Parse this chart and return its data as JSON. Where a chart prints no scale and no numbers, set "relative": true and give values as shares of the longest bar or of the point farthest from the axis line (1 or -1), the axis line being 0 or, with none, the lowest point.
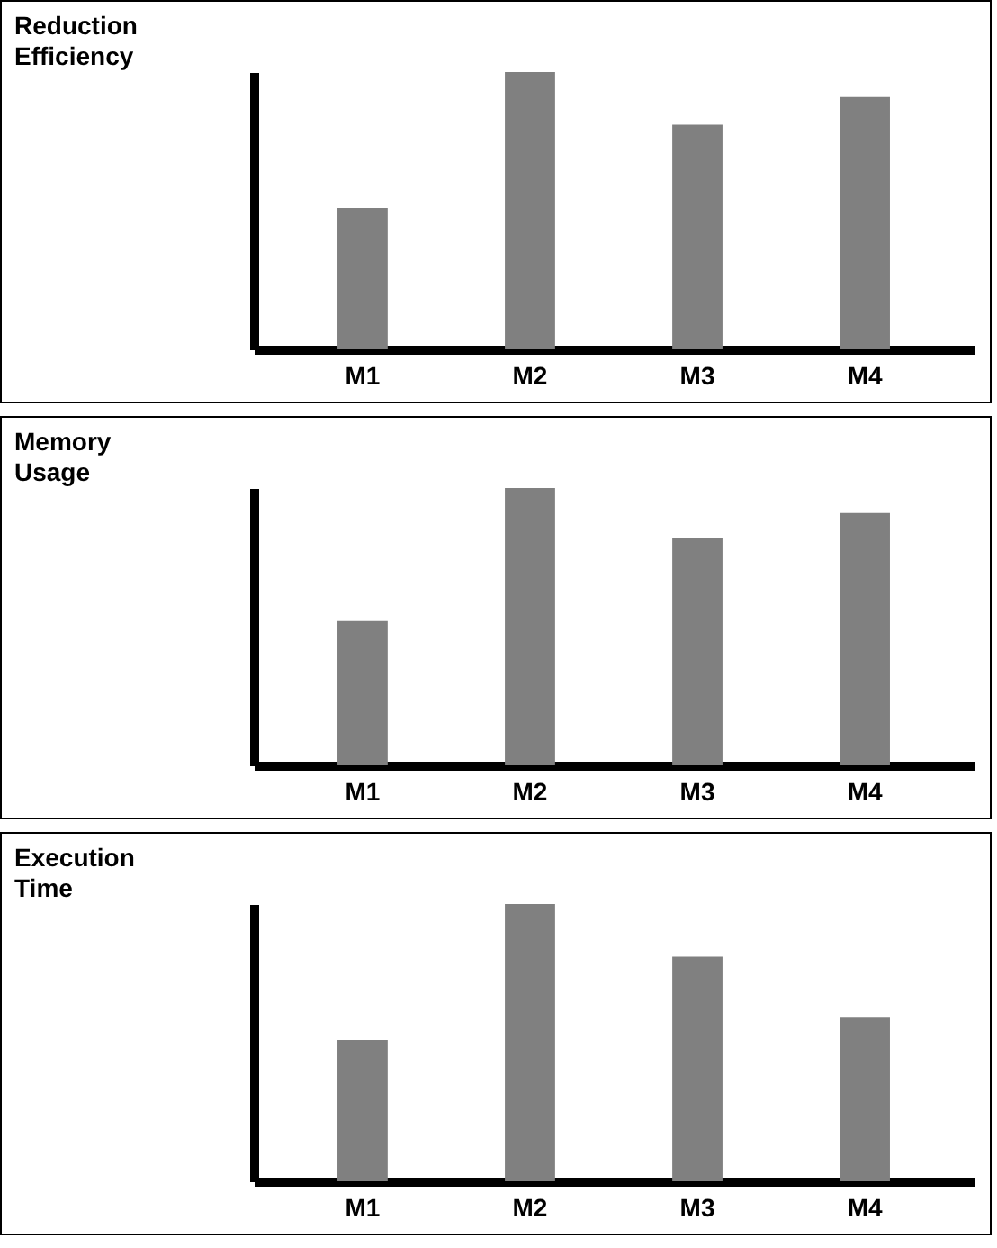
{
  "chart_data": [
    {
      "type": "bar",
      "title": "Reduction Efficiency",
      "categories": [
        "M1",
        "M2",
        "M3",
        "M4"
      ],
      "values": [
        0.51,
        1,
        0.81,
        0.91
      ],
      "color": "#808080",
      "relative": true
    },
    {
      "type": "bar",
      "title": "Memory Usage",
      "categories": [
        "M1",
        "M2",
        "M3",
        "M4"
      ],
      "values": [
        0.52,
        1,
        0.82,
        0.91
      ],
      "color": "#808080",
      "relative": true
    },
    {
      "type": "bar",
      "title": "Execution Time",
      "categories": [
        "M1",
        "M2",
        "M3",
        "M4"
      ],
      "values": [
        0.51,
        1,
        0.81,
        0.59
      ],
      "color": "#808080",
      "relative": true
    }
  ]
}
